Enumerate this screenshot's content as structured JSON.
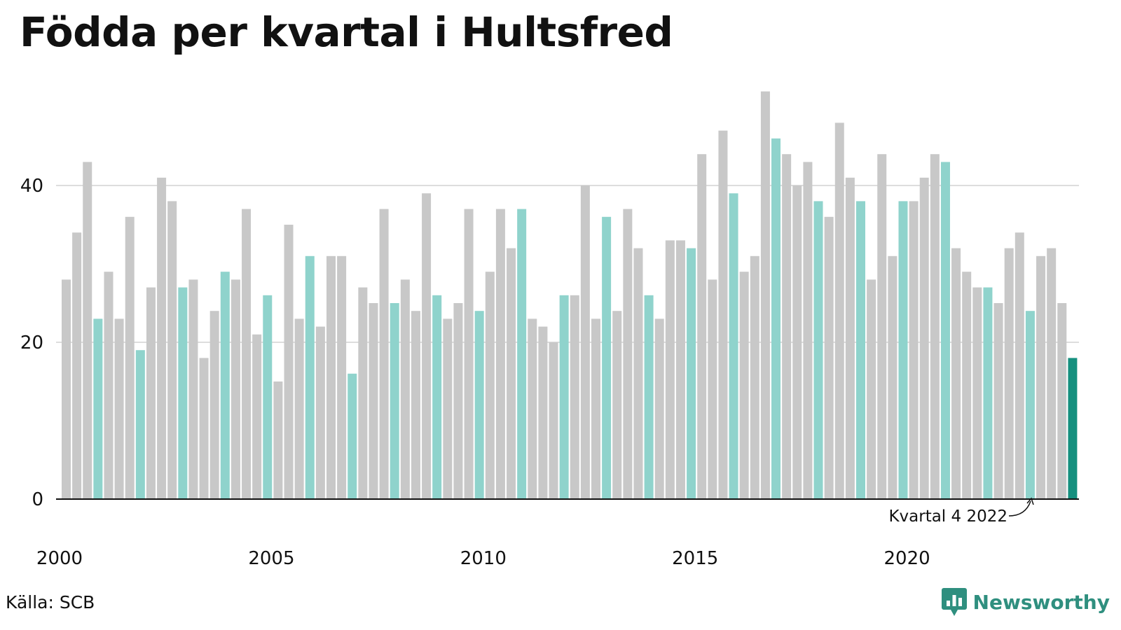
{
  "title": "Födda per kvartal i Hultsfred",
  "source": "Källa: SCB",
  "brand": {
    "name": "Newsworthy",
    "icon": "bar-chart-pin-icon",
    "color": "#2f8f7f"
  },
  "annotation": "Kvartal 4 2022",
  "chart_data": {
    "type": "bar",
    "x_ticks": [
      "2000",
      "2005",
      "2010",
      "2015",
      "2020"
    ],
    "y_ticks": [
      "0",
      "20",
      "40"
    ],
    "ylim": [
      0,
      55
    ],
    "grid": true,
    "colors": {
      "default": "#c8c8c8",
      "same_quarter": "#8fd3cc",
      "latest": "#16907f"
    },
    "series": [
      {
        "values": [
          28,
          34,
          43,
          23,
          29,
          23,
          36,
          19,
          27,
          41,
          38,
          27,
          28,
          18,
          24,
          29,
          28,
          37,
          21,
          26,
          15,
          35,
          23,
          31,
          22,
          31,
          31,
          16,
          27,
          25,
          37,
          25,
          28,
          24,
          39,
          26,
          23,
          25,
          37,
          24,
          29,
          37,
          32,
          37,
          23,
          22,
          20,
          26,
          26,
          40,
          23,
          36,
          24,
          37,
          32,
          26,
          23,
          33,
          33,
          32,
          44,
          28,
          47,
          39,
          29,
          31,
          52,
          46,
          44,
          40,
          43,
          38,
          36,
          48,
          41,
          38,
          28,
          44,
          31,
          38,
          38,
          41,
          44,
          43,
          32,
          29,
          27,
          27,
          25,
          32,
          34,
          24,
          31,
          32,
          25,
          18
        ]
      }
    ]
  }
}
